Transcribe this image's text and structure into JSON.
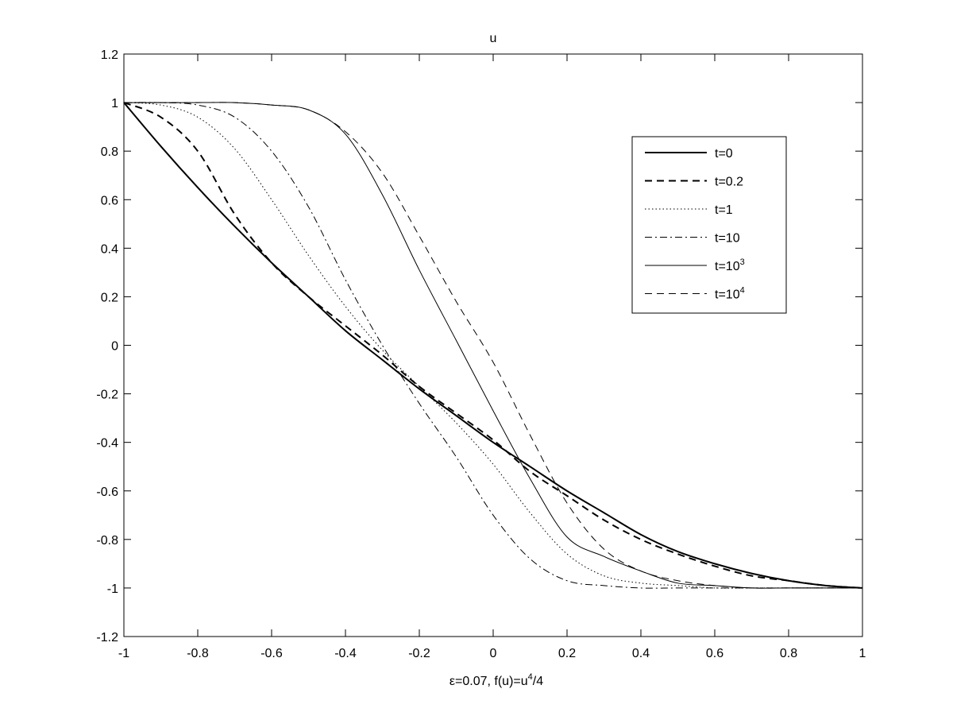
{
  "chart_data": {
    "type": "line",
    "title": "u",
    "xlabel_prefix": "ε=0.07, f(u)=u",
    "xlabel_sup": "4",
    "xlabel_suffix": "/4",
    "ylabel": "",
    "xlim": [
      -1,
      1
    ],
    "ylim": [
      -1.2,
      1.2
    ],
    "xticks": [
      -1,
      -0.8,
      -0.6,
      -0.4,
      -0.2,
      0,
      0.2,
      0.4,
      0.6,
      0.8,
      1
    ],
    "yticks": [
      -1.2,
      -1,
      -0.8,
      -0.6,
      -0.4,
      -0.2,
      0,
      0.2,
      0.4,
      0.6,
      0.8,
      1,
      1.2
    ],
    "xtick_labels": [
      "-1",
      "-0.8",
      "-0.6",
      "-0.4",
      "-0.2",
      "0",
      "0.2",
      "0.4",
      "0.6",
      "0.8",
      "1"
    ],
    "ytick_labels": [
      "-1.2",
      "-1",
      "-0.8",
      "-0.6",
      "-0.4",
      "-0.2",
      "0",
      "0.2",
      "0.4",
      "0.6",
      "0.8",
      "1",
      "1.2"
    ],
    "grid": false,
    "legend_position": "top-right",
    "x": [
      -1,
      -0.9,
      -0.8,
      -0.7,
      -0.6,
      -0.5,
      -0.4,
      -0.3,
      -0.2,
      -0.1,
      0,
      0.1,
      0.2,
      0.3,
      0.4,
      0.5,
      0.6,
      0.7,
      0.8,
      0.9,
      1
    ],
    "series": [
      {
        "name": "t=0",
        "name_base": "t=0",
        "name_sup": "",
        "style": "solid",
        "width": 2,
        "values": [
          1,
          0.82,
          0.65,
          0.49,
          0.34,
          0.2,
          0.06,
          -0.06,
          -0.18,
          -0.29,
          -0.4,
          -0.5,
          -0.6,
          -0.69,
          -0.78,
          -0.85,
          -0.9,
          -0.94,
          -0.97,
          -0.99,
          -1
        ]
      },
      {
        "name": "t=0.2",
        "name_base": "t=0.2",
        "name_sup": "",
        "style": "dash",
        "width": 2,
        "values": [
          1,
          0.94,
          0.8,
          0.54,
          0.34,
          0.2,
          0.08,
          -0.04,
          -0.17,
          -0.28,
          -0.39,
          -0.52,
          -0.62,
          -0.72,
          -0.8,
          -0.86,
          -0.91,
          -0.95,
          -0.97,
          -0.99,
          -1
        ]
      },
      {
        "name": "t=1",
        "name_base": "t=1",
        "name_sup": "",
        "style": "dot",
        "width": 1,
        "values": [
          1,
          0.99,
          0.94,
          0.81,
          0.6,
          0.37,
          0.16,
          -0.02,
          -0.17,
          -0.32,
          -0.49,
          -0.69,
          -0.86,
          -0.95,
          -0.98,
          -0.99,
          -1,
          -1,
          -1,
          -1,
          -1
        ]
      },
      {
        "name": "t=10",
        "name_base": "t=10",
        "name_sup": "",
        "style": "dashdot",
        "width": 1,
        "values": [
          1,
          1,
          0.99,
          0.94,
          0.8,
          0.57,
          0.27,
          0.0,
          -0.24,
          -0.46,
          -0.7,
          -0.88,
          -0.97,
          -0.99,
          -1,
          -1,
          -1,
          -1,
          -1,
          -1,
          -1
        ]
      },
      {
        "name": "t=10^3",
        "name_base": "t=10",
        "name_sup": "3",
        "style": "solid",
        "width": 1,
        "values": [
          1,
          1,
          1,
          1,
          0.99,
          0.97,
          0.87,
          0.62,
          0.31,
          0.02,
          -0.27,
          -0.55,
          -0.79,
          -0.87,
          -0.93,
          -0.98,
          -0.99,
          -1,
          -1,
          -1,
          -1
        ]
      },
      {
        "name": "t=10^4",
        "name_base": "t=10",
        "name_sup": "4",
        "style": "dash",
        "width": 1,
        "values": [
          1,
          1,
          1,
          1,
          0.99,
          0.97,
          0.88,
          0.71,
          0.45,
          0.18,
          -0.07,
          -0.37,
          -0.65,
          -0.84,
          -0.93,
          -0.97,
          -0.99,
          -1,
          -1,
          -1,
          -1
        ]
      }
    ]
  }
}
